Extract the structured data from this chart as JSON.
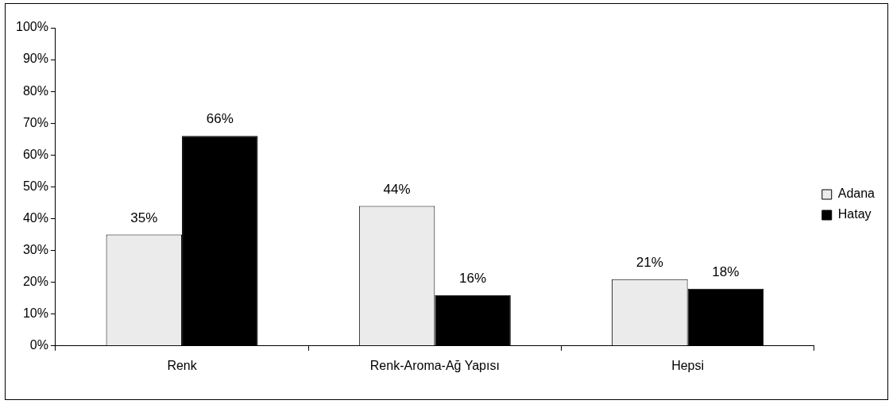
{
  "chart_data": {
    "type": "bar",
    "categories": [
      "Renk",
      "Renk-Aroma-Ağ Yapısı",
      "Hepsi"
    ],
    "series": [
      {
        "name": "Adana",
        "color": "#ebebeb",
        "values": [
          35,
          44,
          21
        ],
        "value_labels": [
          "35%",
          "44%",
          "21%"
        ]
      },
      {
        "name": "Hatay",
        "color": "#000000",
        "values": [
          66,
          16,
          18
        ],
        "value_labels": [
          "66%",
          "16%",
          "18%"
        ]
      }
    ],
    "ylim": [
      0,
      100
    ],
    "yticks": [
      {
        "value": 0,
        "label": "0%"
      },
      {
        "value": 10,
        "label": "10%"
      },
      {
        "value": 20,
        "label": "20%"
      },
      {
        "value": 30,
        "label": "30%"
      },
      {
        "value": 40,
        "label": "40%"
      },
      {
        "value": 50,
        "label": "50%"
      },
      {
        "value": 60,
        "label": "60%"
      },
      {
        "value": 70,
        "label": "70%"
      },
      {
        "value": 80,
        "label": "80%"
      },
      {
        "value": 90,
        "label": "90%"
      },
      {
        "value": 100,
        "label": "100%"
      }
    ],
    "grid": false,
    "legend": "right"
  }
}
